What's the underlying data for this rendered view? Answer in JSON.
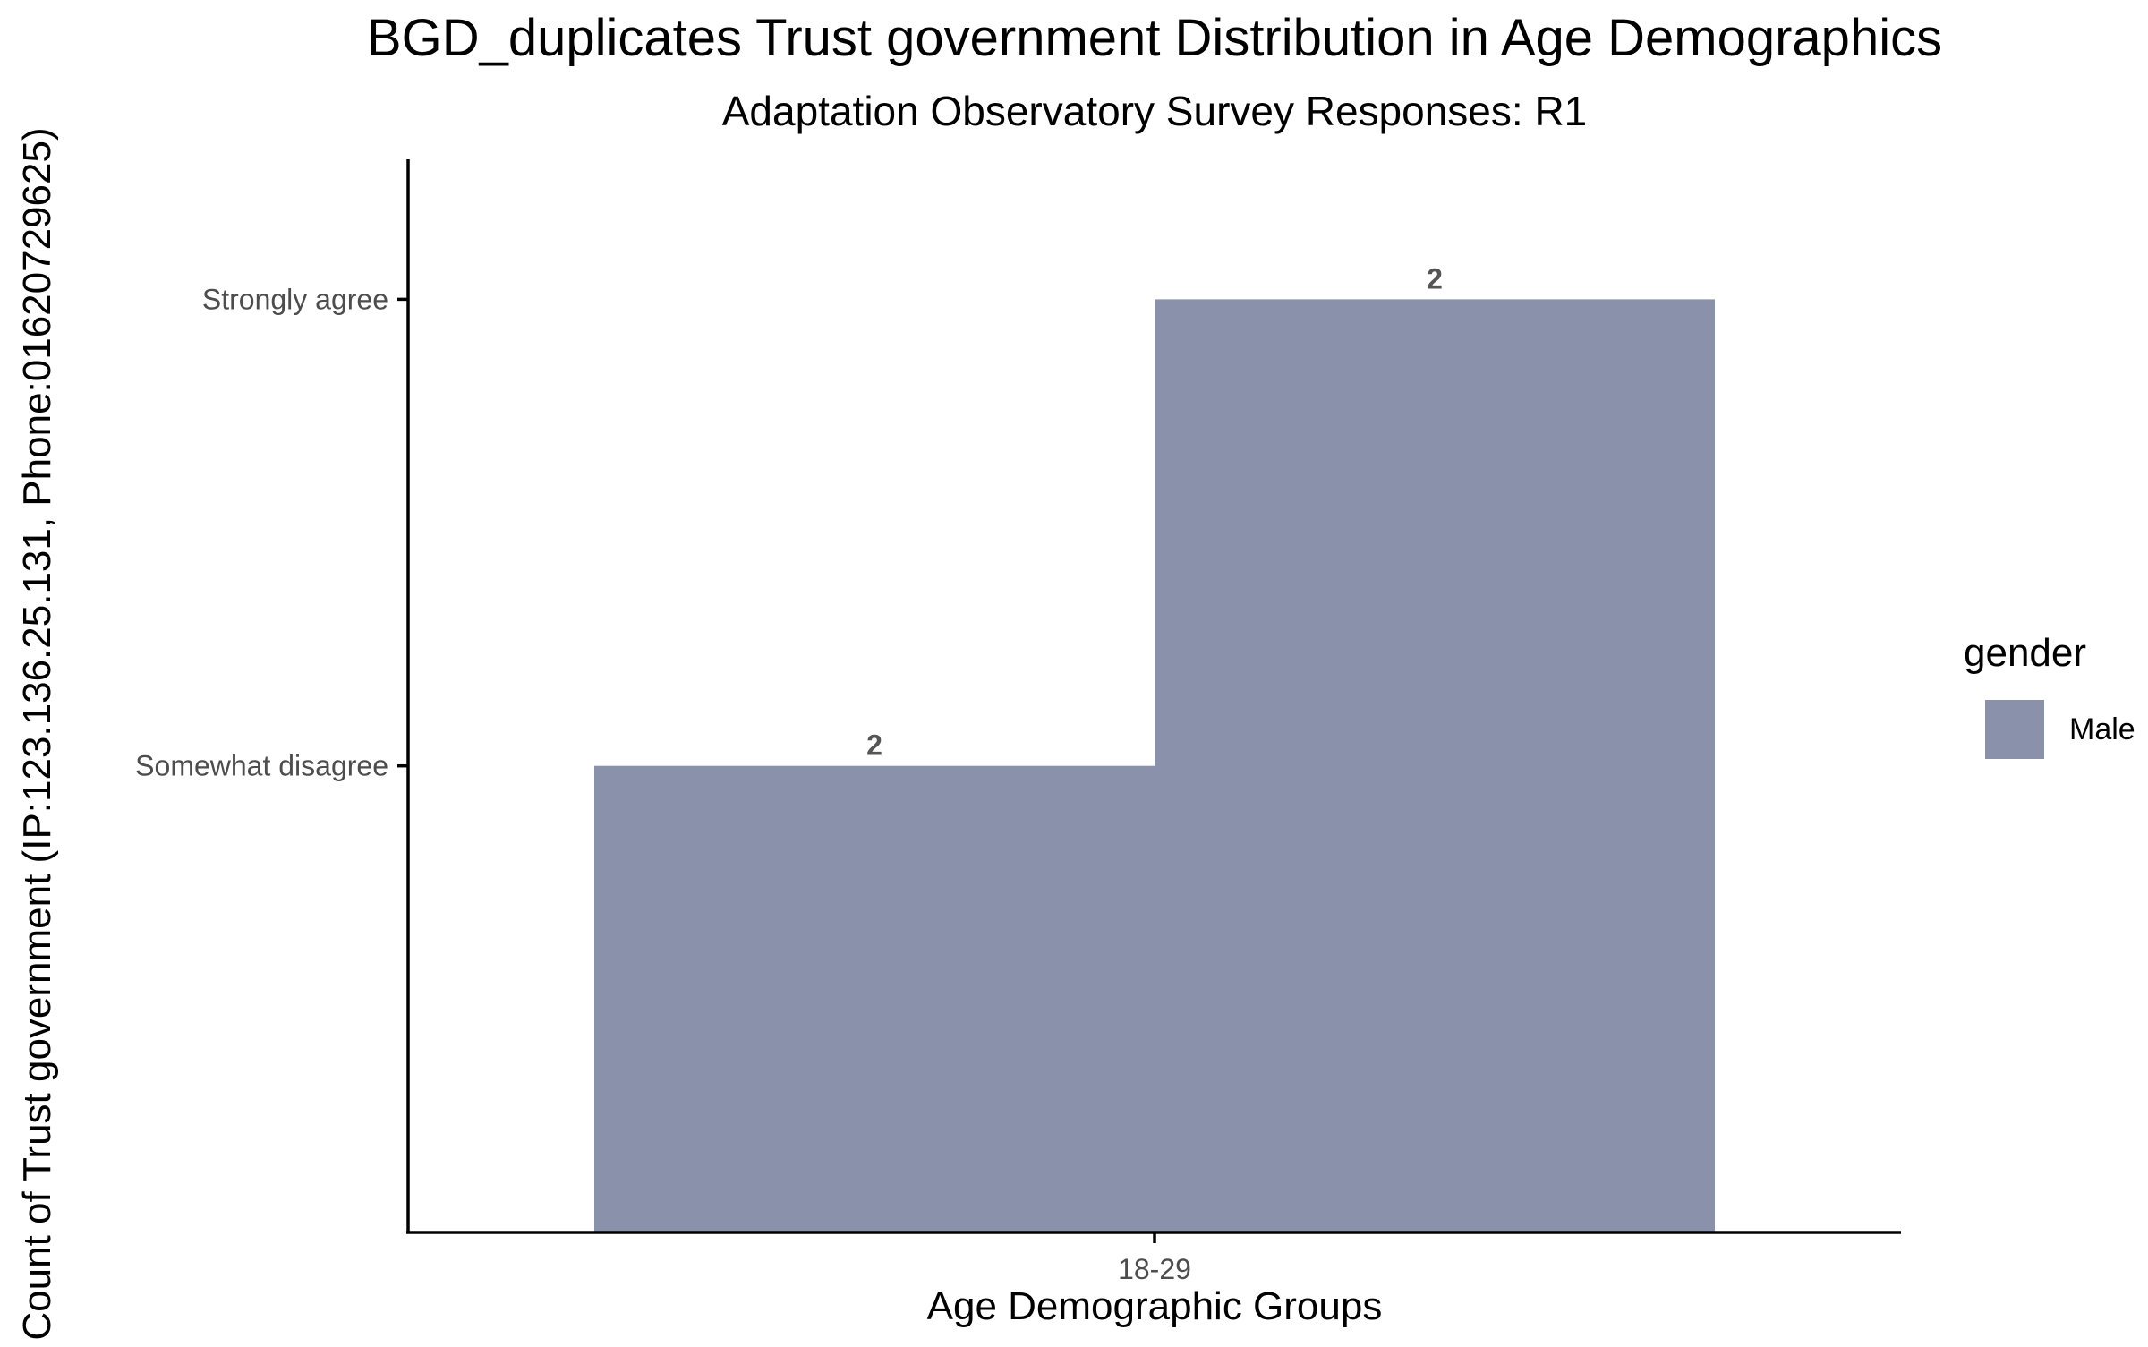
{
  "chart_data": {
    "type": "bar",
    "title": "BGD_duplicates Trust government Distribution in Age Demographics",
    "subtitle": "Adaptation Observatory Survey Responses: R1",
    "xlabel": "Age Demographic Groups",
    "ylabel": "Count of Trust government (IP:123.136.25.131, Phone:01620729625)",
    "categories": [
      "18-29"
    ],
    "y_tick_labels": [
      "Somewhat disagree",
      "Strongly agree"
    ],
    "y_tick_positions": [
      2,
      4
    ],
    "ylim": [
      0,
      4.6
    ],
    "grid": false,
    "legend": {
      "title": "gender",
      "placement": "right",
      "entries": [
        {
          "name": "Male",
          "color": "#8a92ab"
        }
      ]
    },
    "bars": [
      {
        "category": "18-29",
        "dodge": "left",
        "y_category": "Somewhat disagree",
        "y_value": 2,
        "label": "2",
        "series": "Male"
      },
      {
        "category": "18-29",
        "dodge": "right",
        "y_category": "Strongly agree",
        "y_value": 4,
        "label": "2",
        "series": "Male"
      }
    ],
    "colors": {
      "bar": "#8a92ab",
      "label": "#555555",
      "axis": "#000000",
      "tick_text": "#4d4d4d"
    }
  }
}
